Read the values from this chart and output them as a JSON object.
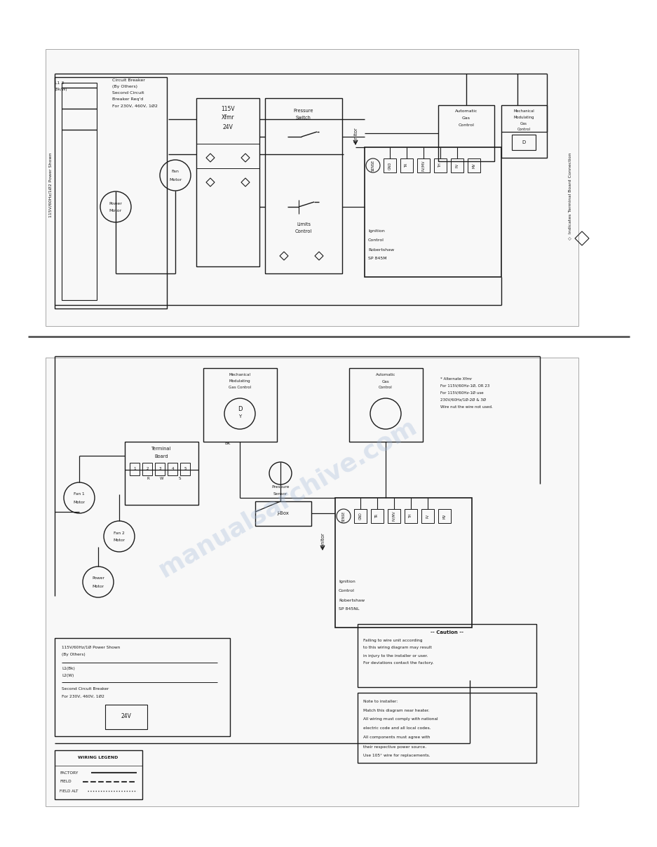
{
  "page_bg": "#ffffff",
  "line_color": "#1a1a1a",
  "watermark_color": "#a0b8d8",
  "watermark_text": "manualsarchive.com",
  "watermark_alpha": 0.32,
  "top_diagram": {
    "circuit_breaker_text": [
      "Circuit Breaker",
      "(By Others)",
      "Second Circuit",
      "Breaker Req'd",
      "For 230V, 460V, 1Ø2"
    ],
    "transformer_labels": [
      "115V",
      "Xfmr",
      "24V"
    ],
    "ignition_control_text": [
      "Ignition",
      "Control",
      "Robertshaw",
      "SP 845M"
    ],
    "terminal_labels": [
      "SENSE",
      "GND",
      "TR",
      "PV/MV",
      "TH",
      "PV",
      "MV"
    ],
    "legend_text": "◇  Indicates Terminal Board Connection"
  },
  "bottom_diagram": {
    "ignition_control_text": [
      "Ignition",
      "Control",
      "Robertshaw",
      "SP 845NL"
    ],
    "terminal_labels": [
      "SENSE",
      "GND",
      "TR",
      "PV/MV",
      "TH",
      "PV",
      "MV"
    ],
    "alternate_xfmr_text": [
      "* Alternate Xfmr",
      "For 115V/60Hz-1Ø, OR 23",
      "For 115V/60Hz-1Ø use",
      "230V/60Hz/1Ø-2Ø & 3Ø",
      "Wire nut the wire not used."
    ],
    "caution_text": [
      "-- Caution --",
      "Failing to wire unit according",
      "to this wiring diagram may result",
      "in injury to the installer or user.",
      "For deviations contact the factory."
    ],
    "installer_notes": [
      "Note to installer:",
      "Match this diagram near heater.",
      "All wiring must comply with national",
      "electric code and all local codes.",
      "All components must agree with",
      "their respective power source.",
      "Use 105° wire for replacements."
    ],
    "wiring_legend": [
      "WIRING LEGEND",
      "FACTORY",
      "FIELD"
    ]
  }
}
